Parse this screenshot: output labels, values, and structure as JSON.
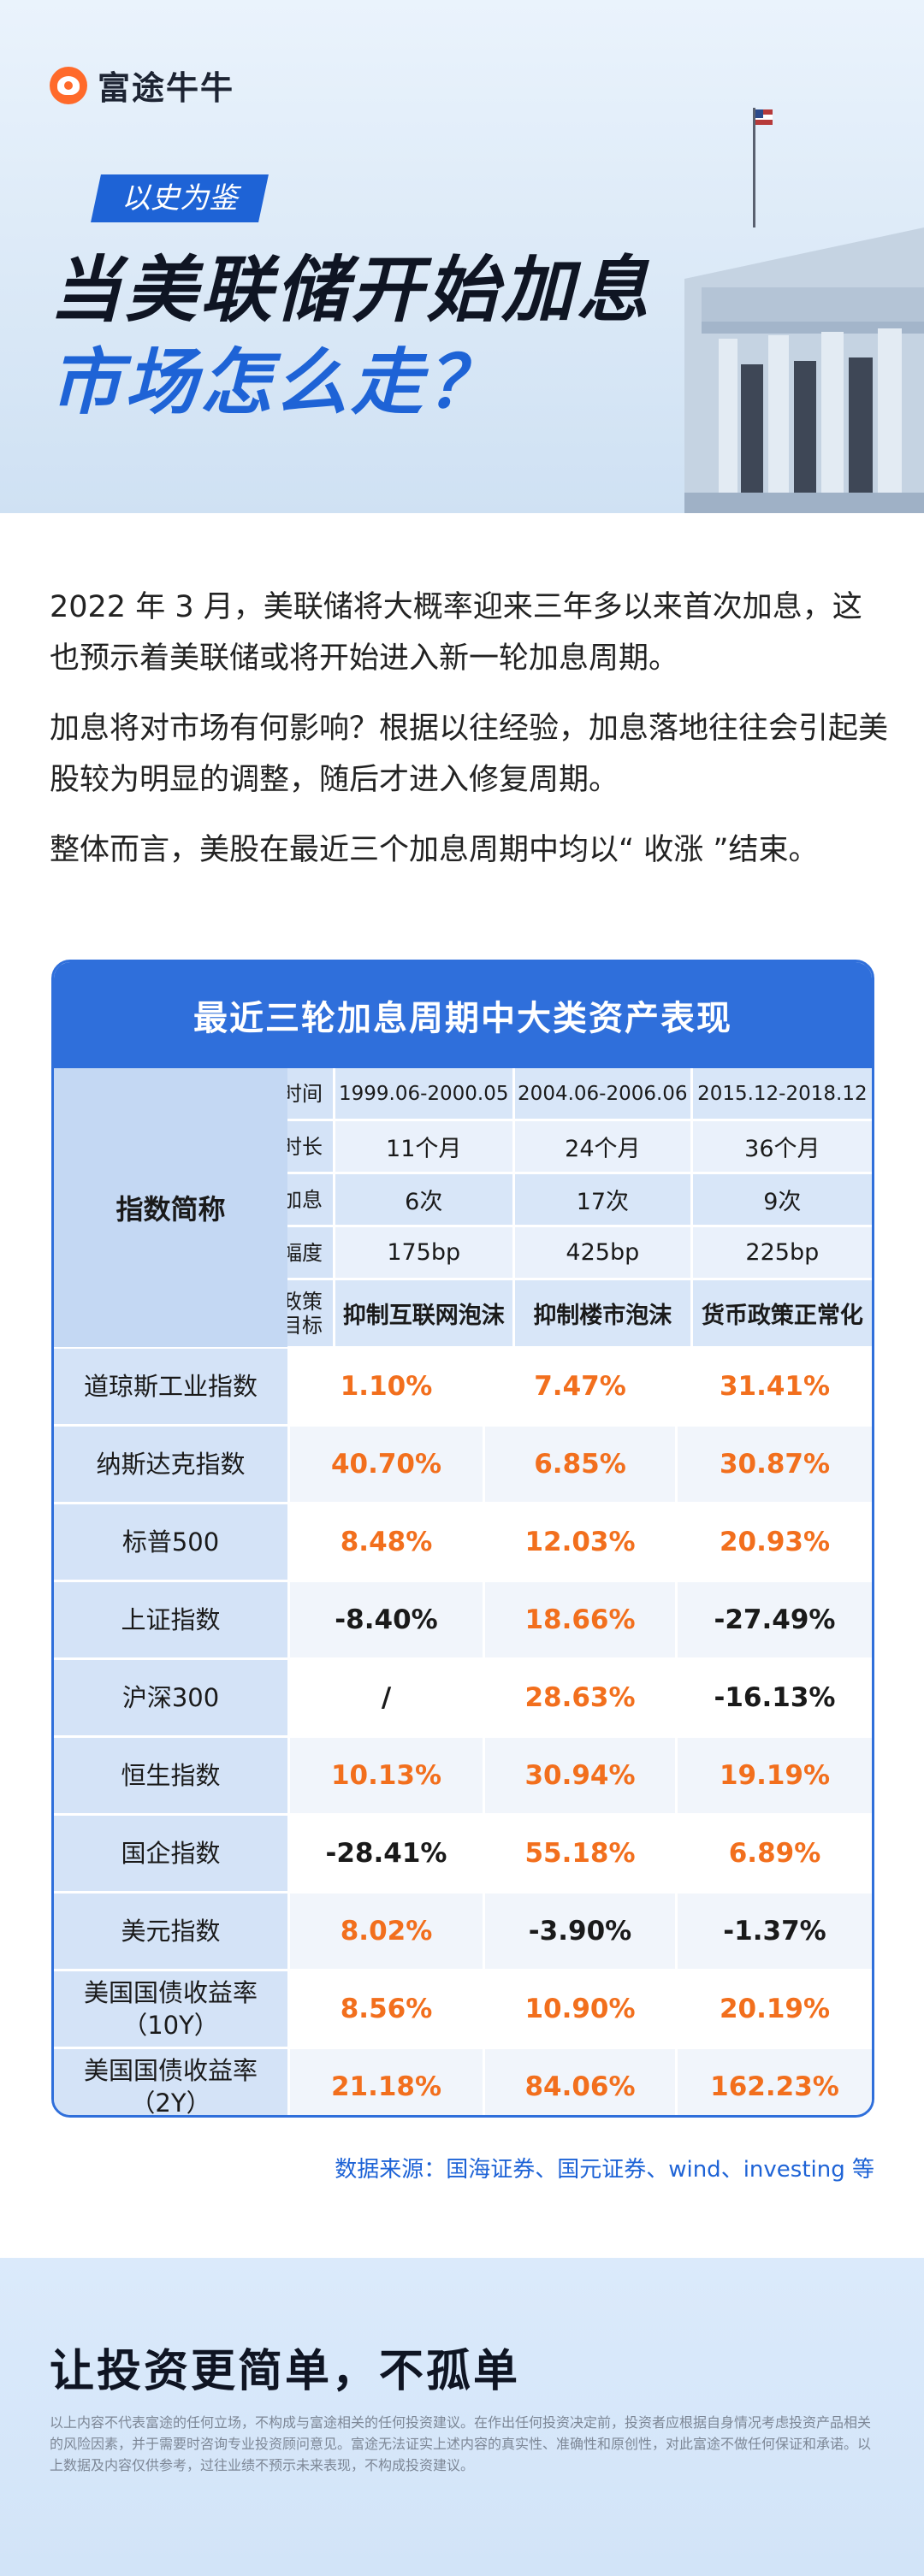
{
  "brand": {
    "name": "富途牛牛"
  },
  "hero": {
    "tag": "以史为鉴",
    "title_line1": "当美联储开始加息",
    "title_line2": "市场怎么走？"
  },
  "intro": [
    "2022 年 3 月，美联储将大概率迎来三年多以来首次加息，这也预示着美联储或将开始进入新一轮加息周期。",
    "加息将对市场有何影响？根据以往经验，加息落地往往会引起美股较为明显的调整，随后才进入修复周期。",
    "整体而言，美股在最近三个加息周期中均以“ 收涨 ”结束。"
  ],
  "table": {
    "title": "最近三轮加息周期中大类资产表现",
    "name_header": "指数简称",
    "header_rows": [
      {
        "label": "时间",
        "values": [
          "1999.06-2000.05",
          "2004.06-2006.06",
          "2015.12-2018.12"
        ]
      },
      {
        "label": "时长",
        "values": [
          "11个月",
          "24个月",
          "36个月"
        ]
      },
      {
        "label": "加息",
        "values": [
          "6次",
          "17次",
          "9次"
        ]
      },
      {
        "label": "幅度",
        "values": [
          "175bp",
          "425bp",
          "225bp"
        ]
      },
      {
        "label": "政策目标",
        "values": [
          "抑制互联网泡沫",
          "抑制楼市泡沫",
          "货币政策正常化"
        ]
      }
    ],
    "rows": [
      {
        "name": "道琼斯工业指数",
        "values": [
          "1.10%",
          "7.47%",
          "31.41%"
        ]
      },
      {
        "name": "纳斯达克指数",
        "values": [
          "40.70%",
          "6.85%",
          "30.87%"
        ]
      },
      {
        "name": "标普500",
        "values": [
          "8.48%",
          "12.03%",
          "20.93%"
        ]
      },
      {
        "name": "上证指数",
        "values": [
          "-8.40%",
          "18.66%",
          "-27.49%"
        ]
      },
      {
        "name": "沪深300",
        "values": [
          "/",
          "28.63%",
          "-16.13%"
        ]
      },
      {
        "name": "恒生指数",
        "values": [
          "10.13%",
          "30.94%",
          "19.19%"
        ]
      },
      {
        "name": "国企指数",
        "values": [
          "-28.41%",
          "55.18%",
          "6.89%"
        ]
      },
      {
        "name": "美元指数",
        "values": [
          "8.02%",
          "-3.90%",
          "-1.37%"
        ]
      },
      {
        "name": "美国国债收益率（10Y）",
        "values": [
          "8.56%",
          "10.90%",
          "20.19%"
        ]
      },
      {
        "name": "美国国债收益率（2Y）",
        "values": [
          "21.18%",
          "84.06%",
          "162.23%"
        ]
      }
    ],
    "colors": {
      "positive": "#f26f1d",
      "negative": "#1a1a1a",
      "accent": "#2f6fdb"
    }
  },
  "source": "数据来源：国海证券、国元证券、wind、investing 等",
  "footer": {
    "slogan": "让投资更简单，不孤单",
    "disclaimer": "以上内容不代表富途的任何立场，不构成与富途相关的任何投资建议。在作出任何投资决定前，投资者应根据自身情况考虑投资产品相关的风险因素，并于需要时咨询专业投资顾问意见。富途无法证实上述内容的真实性、准确性和原创性，对此富途不做任何保证和承诺。以上数据及内容仅供参考，过往业绩不预示未来表现，不构成投资建议。"
  }
}
